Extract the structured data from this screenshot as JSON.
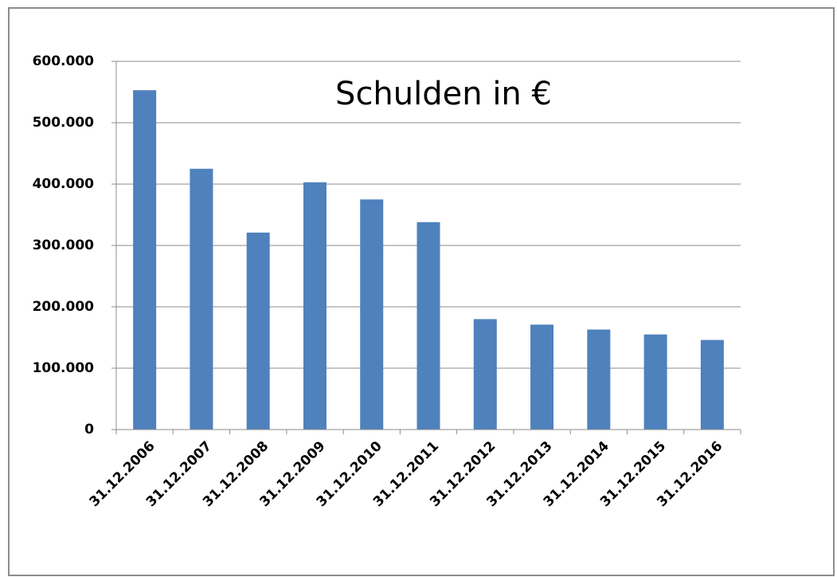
{
  "chart_data": {
    "type": "bar",
    "title": "Schulden in €",
    "categories": [
      "31.12.2006",
      "31.12.2007",
      "31.12.2008",
      "31.12.2009",
      "31.12.2010",
      "31.12.2011",
      "31.12.2012",
      "31.12.2013",
      "31.12.2014",
      "31.12.2015",
      "31.12.2016"
    ],
    "values": [
      553000,
      425000,
      321000,
      403000,
      375000,
      338000,
      180000,
      171000,
      163000,
      155000,
      146000
    ],
    "color": "#4f81bd",
    "ylim": [
      0,
      600000
    ],
    "yticks": [
      0,
      {
        "value": 100000,
        "label": "100.000"
      },
      {
        "value": 200000,
        "label": "200.000"
      },
      {
        "value": 300000,
        "label": "300.000"
      },
      {
        "value": 400000,
        "label": "400.000"
      },
      {
        "value": 500000,
        "label": "500.000"
      },
      {
        "value": 600000,
        "label": "600.000"
      }
    ],
    "grid": true
  }
}
